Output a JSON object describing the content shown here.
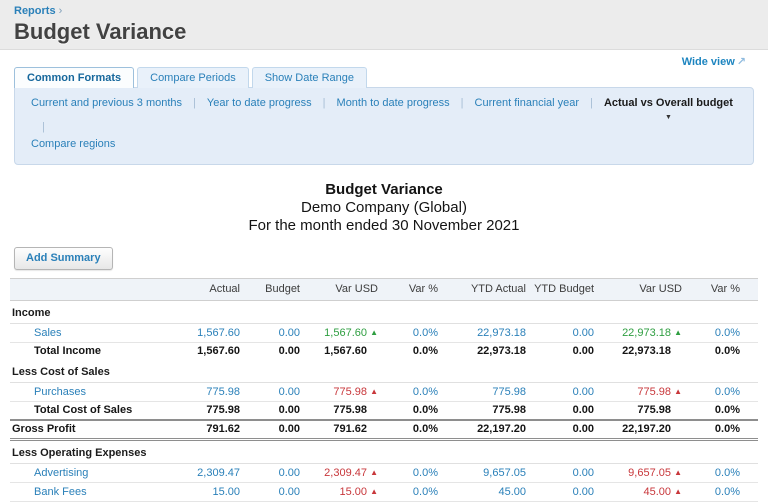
{
  "breadcrumb": {
    "label": "Reports",
    "separator": "›"
  },
  "page_title": "Budget Variance",
  "wide_view": {
    "label": "Wide view",
    "icon": "↗"
  },
  "tabs": [
    {
      "label": "Common Formats",
      "active": true
    },
    {
      "label": "Compare Periods",
      "active": false
    },
    {
      "label": "Show Date Range",
      "active": false
    }
  ],
  "format_links": {
    "row1": [
      {
        "label": "Current and previous 3 months"
      },
      {
        "label": "Year to date progress"
      },
      {
        "label": "Month to date progress"
      },
      {
        "label": "Current financial year"
      },
      {
        "label": "Actual vs Overall budget",
        "selected": true,
        "dropdown": true
      }
    ],
    "row2": [
      {
        "label": "Compare regions"
      }
    ]
  },
  "report_header": {
    "title": "Budget Variance",
    "company": "Demo Company (Global)",
    "period": "For the month ended 30 November 2021"
  },
  "toolbar": {
    "add_summary_label": "Add Summary"
  },
  "icons": {
    "arrow_up": "▲",
    "caret_down": "▼",
    "external_arrow": "↗"
  },
  "colors": {
    "link_blue": "#2a80b9",
    "positive_green": "#2e9e40",
    "negative_red": "#c8373b",
    "panel_blue": "#e4edf8",
    "header_band_gray": "#ececec"
  },
  "table": {
    "columns": [
      "Actual",
      "Budget",
      "Var USD",
      "Var %",
      "YTD Actual",
      "YTD Budget",
      "Var USD",
      "Var %"
    ],
    "rows": [
      {
        "type": "section",
        "label": "Income"
      },
      {
        "type": "account",
        "label": "Sales",
        "var_tone": "positive",
        "cells": [
          "1,567.60",
          "0.00",
          "1,567.60",
          "0.0%",
          "22,973.18",
          "0.00",
          "22,973.18",
          "0.0%"
        ]
      },
      {
        "type": "total",
        "label": "Total Income",
        "cells": [
          "1,567.60",
          "0.00",
          "1,567.60",
          "0.0%",
          "22,973.18",
          "0.00",
          "22,973.18",
          "0.0%"
        ]
      },
      {
        "type": "section",
        "label": "Less Cost of Sales"
      },
      {
        "type": "account",
        "label": "Purchases",
        "var_tone": "negative",
        "cells": [
          "775.98",
          "0.00",
          "775.98",
          "0.0%",
          "775.98",
          "0.00",
          "775.98",
          "0.0%"
        ]
      },
      {
        "type": "total",
        "label": "Total Cost of Sales",
        "cells": [
          "775.98",
          "0.00",
          "775.98",
          "0.0%",
          "775.98",
          "0.00",
          "775.98",
          "0.0%"
        ]
      },
      {
        "type": "grand",
        "label": "Gross Profit",
        "cells": [
          "791.62",
          "0.00",
          "791.62",
          "0.0%",
          "22,197.20",
          "0.00",
          "22,197.20",
          "0.0%"
        ]
      },
      {
        "type": "section",
        "label": "Less Operating Expenses"
      },
      {
        "type": "account",
        "label": "Advertising",
        "var_tone": "negative",
        "cells": [
          "2,309.47",
          "0.00",
          "2,309.47",
          "0.0%",
          "9,657.05",
          "0.00",
          "9,657.05",
          "0.0%"
        ]
      },
      {
        "type": "account",
        "label": "Bank Fees",
        "var_tone": "negative",
        "cells": [
          "15.00",
          "0.00",
          "15.00",
          "0.0%",
          "45.00",
          "0.00",
          "45.00",
          "0.0%"
        ]
      }
    ]
  }
}
